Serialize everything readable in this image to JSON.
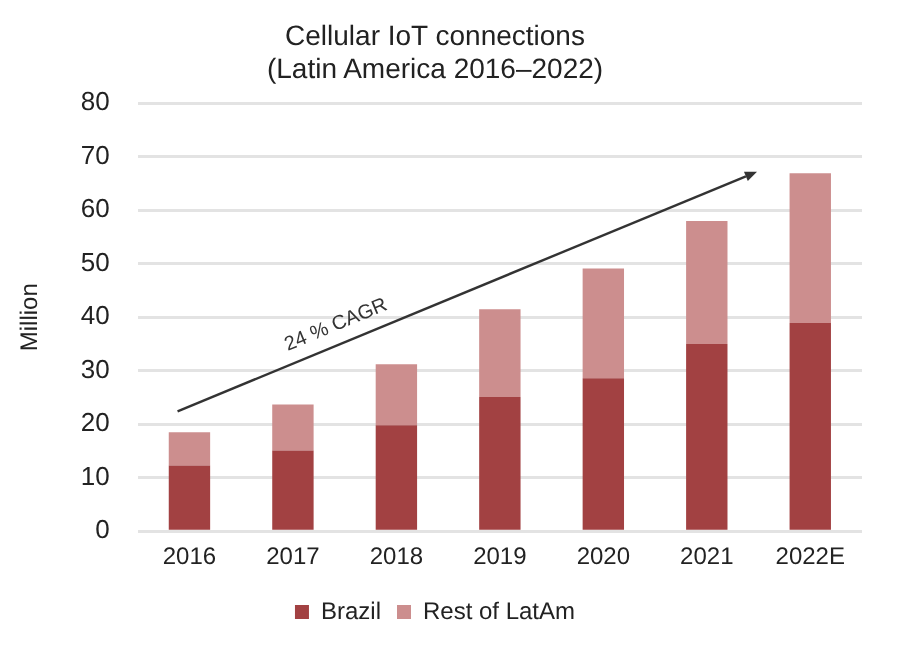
{
  "chart_data": {
    "type": "bar",
    "title": [
      "Cellular IoT connections",
      "(Latin America 2016–2022)"
    ],
    "ylabel": "Million",
    "categories": [
      "2016",
      "2017",
      "2018",
      "2019",
      "2020",
      "2021",
      "2022E"
    ],
    "series": [
      {
        "name": "Brazil",
        "color": "#a24142",
        "values": [
          12.3,
          15.1,
          19.8,
          25.1,
          28.6,
          35,
          38.9
        ]
      },
      {
        "name": "Rest of LatAm",
        "color": "#cc8e8e",
        "values": [
          6.2,
          8.6,
          11.4,
          16.4,
          20.5,
          23,
          28
        ]
      }
    ],
    "stacked": true,
    "ylim": [
      0,
      80
    ],
    "yticks": [
      0,
      10,
      20,
      30,
      40,
      50,
      60,
      70,
      80
    ],
    "grid": "y",
    "legend": "bottom",
    "annotations": [
      "24 % CAGR"
    ]
  }
}
